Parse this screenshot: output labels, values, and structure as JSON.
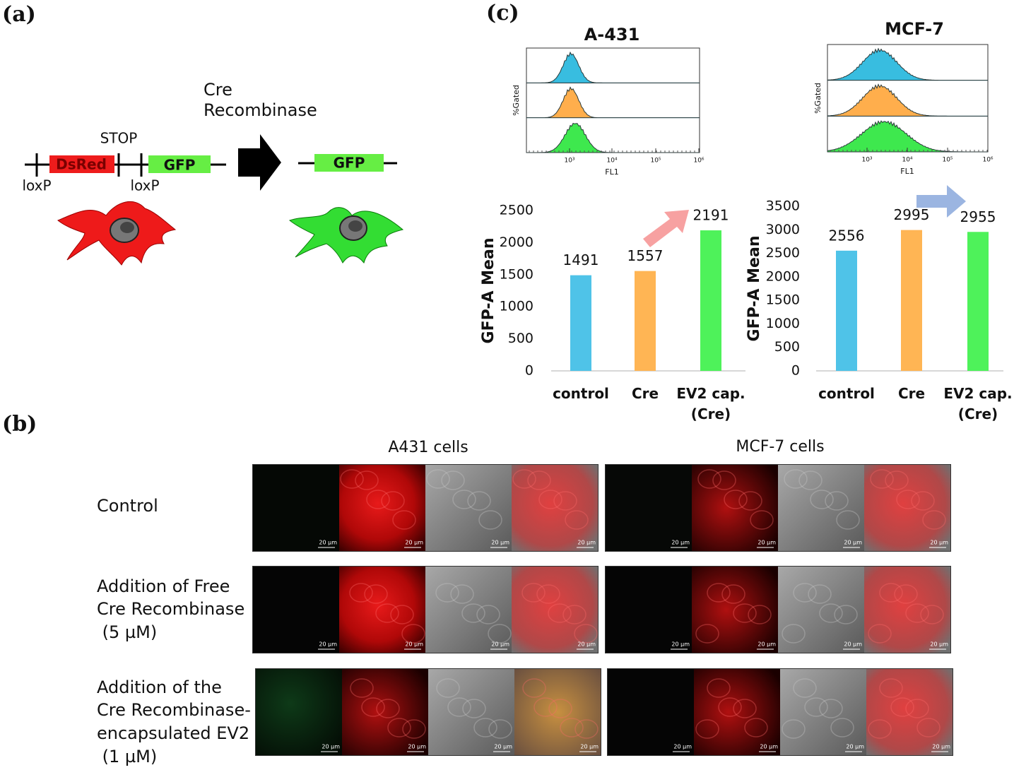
{
  "panel_labels": [
    "(a)",
    "(b)",
    "(c)"
  ],
  "diagram": {
    "enzyme": [
      "Cre",
      "Recombinase"
    ],
    "stop": "STOP",
    "before": [
      "DsRed",
      "GFP"
    ],
    "lox": [
      "loxP",
      "loxP"
    ],
    "after": "GFP"
  },
  "histograms": [
    {
      "title": "A-431",
      "ylabel": "%Gated",
      "xlabel": "FL1",
      "xticks": [
        "10³",
        "10⁴",
        "10⁵",
        "10⁶"
      ]
    },
    {
      "title": "MCF-7",
      "ylabel": "%Gated",
      "xlabel": "FL1",
      "xticks": [
        "10³",
        "10⁴",
        "10⁵",
        "10⁶"
      ]
    }
  ],
  "chart_data": [
    {
      "type": "bar",
      "y_label": "GFP-A Mean",
      "categories": [
        "control",
        "Cre",
        "EV2 cap. (Cre)"
      ],
      "values": [
        1491,
        1557,
        2191
      ],
      "colors": [
        "#4fc3e8",
        "#ffb554",
        "#4ef25a"
      ],
      "ylim": [
        0,
        2500
      ],
      "yticks": [
        0,
        500,
        1000,
        1500,
        2000,
        2500
      ]
    },
    {
      "type": "bar",
      "y_label": "GFP-A Mean",
      "categories": [
        "control",
        "Cre",
        "EV2 cap. (Cre)"
      ],
      "values": [
        2556,
        2995,
        2955
      ],
      "colors": [
        "#4fc3e8",
        "#ffb554",
        "#4ef25a"
      ],
      "ylim": [
        0,
        3500
      ],
      "yticks": [
        0,
        500,
        1000,
        1500,
        2000,
        2500,
        3000,
        3500
      ]
    }
  ],
  "microscopy": {
    "columns": [
      "A431 cells",
      "MCF-7 cells"
    ],
    "rows": [
      [
        "Control"
      ],
      [
        "Addition of Free",
        "Cre Recombinase",
        " (5 µM)"
      ],
      [
        "Addition of the",
        "Cre Recombinase-",
        "encapsulated EV2",
        " (1 µM)"
      ]
    ],
    "scale_bar": "20 µm"
  }
}
